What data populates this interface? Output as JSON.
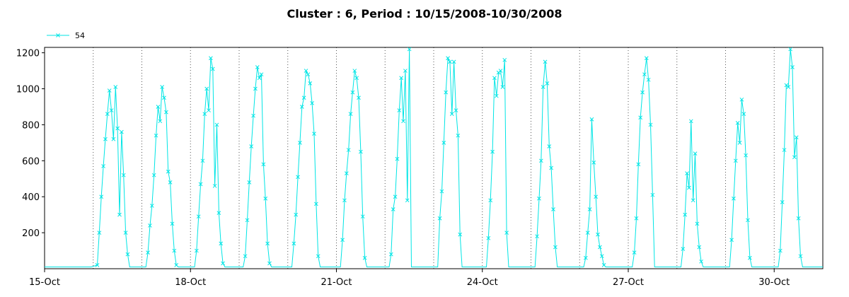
{
  "chart_data": {
    "type": "line",
    "title": "Cluster : 6, Period : 10/15/2008-10/30/2008",
    "xlabel": "",
    "ylabel": "",
    "x_ticks": [
      "15-Oct",
      "18-Oct",
      "21-Oct",
      "24-Oct",
      "27-Oct",
      "30-Oct"
    ],
    "y_ticks": [
      200,
      400,
      600,
      800,
      1000,
      1200
    ],
    "xlim": [
      "2008-10-15",
      "2008-10-30"
    ],
    "ylim": [
      0,
      1230
    ],
    "grid": "vertical dotted",
    "legend_position": "top-left",
    "colors": {
      "series": "#00e5e5",
      "axis": "#000000",
      "grid": "#555555"
    },
    "series": [
      {
        "name": "54",
        "points": [
          [
            "2008-10-15",
            10
          ],
          [
            "2008-10-15 12:00",
            10
          ],
          [
            "2008-10-15 23:00",
            10
          ],
          [
            "2008-10-16 02:00",
            20
          ],
          [
            "2008-10-16 03:00",
            200
          ],
          [
            "2008-10-16 04:00",
            400
          ],
          [
            "2008-10-16 05:00",
            570
          ],
          [
            "2008-10-16 06:00",
            720
          ],
          [
            "2008-10-16 07:00",
            860
          ],
          [
            "2008-10-16 08:00",
            990
          ],
          [
            "2008-10-16 09:00",
            880
          ],
          [
            "2008-10-16 10:00",
            720
          ],
          [
            "2008-10-16 11:00",
            1010
          ],
          [
            "2008-10-16 12:00",
            780
          ],
          [
            "2008-10-16 13:00",
            300
          ],
          [
            "2008-10-16 14:00",
            760
          ],
          [
            "2008-10-16 15:00",
            520
          ],
          [
            "2008-10-16 16:00",
            200
          ],
          [
            "2008-10-16 17:00",
            80
          ],
          [
            "2008-10-16 18:00",
            10
          ],
          [
            "2008-10-17 02:00",
            10
          ],
          [
            "2008-10-17 03:00",
            90
          ],
          [
            "2008-10-17 04:00",
            240
          ],
          [
            "2008-10-17 05:00",
            350
          ],
          [
            "2008-10-17 06:00",
            520
          ],
          [
            "2008-10-17 07:00",
            740
          ],
          [
            "2008-10-17 08:00",
            900
          ],
          [
            "2008-10-17 09:00",
            820
          ],
          [
            "2008-10-17 10:00",
            1010
          ],
          [
            "2008-10-17 11:00",
            950
          ],
          [
            "2008-10-17 12:00",
            870
          ],
          [
            "2008-10-17 13:00",
            540
          ],
          [
            "2008-10-17 14:00",
            480
          ],
          [
            "2008-10-17 15:00",
            250
          ],
          [
            "2008-10-17 16:00",
            100
          ],
          [
            "2008-10-17 17:00",
            20
          ],
          [
            "2008-10-17 18:00",
            10
          ],
          [
            "2008-10-18 02:00",
            10
          ],
          [
            "2008-10-18 03:00",
            100
          ],
          [
            "2008-10-18 04:00",
            290
          ],
          [
            "2008-10-18 05:00",
            470
          ],
          [
            "2008-10-18 06:00",
            600
          ],
          [
            "2008-10-18 07:00",
            860
          ],
          [
            "2008-10-18 08:00",
            1000
          ],
          [
            "2008-10-18 09:00",
            880
          ],
          [
            "2008-10-18 10:00",
            1170
          ],
          [
            "2008-10-18 11:00",
            1110
          ],
          [
            "2008-10-18 12:00",
            460
          ],
          [
            "2008-10-18 13:00",
            800
          ],
          [
            "2008-10-18 14:00",
            310
          ],
          [
            "2008-10-18 15:00",
            140
          ],
          [
            "2008-10-18 16:00",
            30
          ],
          [
            "2008-10-18 17:00",
            10
          ],
          [
            "2008-10-19 02:00",
            10
          ],
          [
            "2008-10-19 03:00",
            70
          ],
          [
            "2008-10-19 04:00",
            270
          ],
          [
            "2008-10-19 05:00",
            480
          ],
          [
            "2008-10-19 06:00",
            680
          ],
          [
            "2008-10-19 07:00",
            850
          ],
          [
            "2008-10-19 08:00",
            1000
          ],
          [
            "2008-10-19 09:00",
            1120
          ],
          [
            "2008-10-19 10:00",
            1060
          ],
          [
            "2008-10-19 11:00",
            1080
          ],
          [
            "2008-10-19 12:00",
            580
          ],
          [
            "2008-10-19 13:00",
            390
          ],
          [
            "2008-10-19 14:00",
            140
          ],
          [
            "2008-10-19 15:00",
            30
          ],
          [
            "2008-10-19 16:00",
            10
          ],
          [
            "2008-10-20 02:00",
            10
          ],
          [
            "2008-10-20 03:00",
            140
          ],
          [
            "2008-10-20 04:00",
            300
          ],
          [
            "2008-10-20 05:00",
            510
          ],
          [
            "2008-10-20 06:00",
            700
          ],
          [
            "2008-10-20 07:00",
            900
          ],
          [
            "2008-10-20 08:00",
            950
          ],
          [
            "2008-10-20 09:00",
            1100
          ],
          [
            "2008-10-20 10:00",
            1080
          ],
          [
            "2008-10-20 11:00",
            1030
          ],
          [
            "2008-10-20 12:00",
            920
          ],
          [
            "2008-10-20 13:00",
            750
          ],
          [
            "2008-10-20 14:00",
            360
          ],
          [
            "2008-10-20 15:00",
            70
          ],
          [
            "2008-10-20 16:00",
            10
          ],
          [
            "2008-10-21 02:00",
            10
          ],
          [
            "2008-10-21 03:00",
            160
          ],
          [
            "2008-10-21 04:00",
            380
          ],
          [
            "2008-10-21 05:00",
            530
          ],
          [
            "2008-10-21 06:00",
            660
          ],
          [
            "2008-10-21 07:00",
            860
          ],
          [
            "2008-10-21 08:00",
            980
          ],
          [
            "2008-10-21 09:00",
            1100
          ],
          [
            "2008-10-21 10:00",
            1060
          ],
          [
            "2008-10-21 11:00",
            950
          ],
          [
            "2008-10-21 12:00",
            650
          ],
          [
            "2008-10-21 13:00",
            290
          ],
          [
            "2008-10-21 14:00",
            60
          ],
          [
            "2008-10-21 15:00",
            10
          ],
          [
            "2008-10-22 02:00",
            10
          ],
          [
            "2008-10-22 03:00",
            80
          ],
          [
            "2008-10-22 04:00",
            330
          ],
          [
            "2008-10-22 05:00",
            400
          ],
          [
            "2008-10-22 06:00",
            610
          ],
          [
            "2008-10-22 07:00",
            880
          ],
          [
            "2008-10-22 08:00",
            1060
          ],
          [
            "2008-10-22 09:00",
            820
          ],
          [
            "2008-10-22 10:00",
            1100
          ],
          [
            "2008-10-22 11:00",
            380
          ],
          [
            "2008-10-22 12:00",
            1220
          ],
          [
            "2008-10-22 13:00",
            10
          ],
          [
            "2008-10-23 02:00",
            10
          ],
          [
            "2008-10-23 03:00",
            280
          ],
          [
            "2008-10-23 04:00",
            430
          ],
          [
            "2008-10-23 05:00",
            700
          ],
          [
            "2008-10-23 06:00",
            980
          ],
          [
            "2008-10-23 07:00",
            1170
          ],
          [
            "2008-10-23 08:00",
            1150
          ],
          [
            "2008-10-23 09:00",
            860
          ],
          [
            "2008-10-23 10:00",
            1150
          ],
          [
            "2008-10-23 11:00",
            880
          ],
          [
            "2008-10-23 12:00",
            740
          ],
          [
            "2008-10-23 13:00",
            190
          ],
          [
            "2008-10-23 14:00",
            10
          ],
          [
            "2008-10-24 02:00",
            10
          ],
          [
            "2008-10-24 03:00",
            170
          ],
          [
            "2008-10-24 04:00",
            380
          ],
          [
            "2008-10-24 05:00",
            650
          ],
          [
            "2008-10-24 06:00",
            1060
          ],
          [
            "2008-10-24 07:00",
            960
          ],
          [
            "2008-10-24 08:00",
            1090
          ],
          [
            "2008-10-24 09:00",
            1100
          ],
          [
            "2008-10-24 10:00",
            1010
          ],
          [
            "2008-10-24 11:00",
            1160
          ],
          [
            "2008-10-24 12:00",
            200
          ],
          [
            "2008-10-24 13:00",
            10
          ],
          [
            "2008-10-25 02:00",
            10
          ],
          [
            "2008-10-25 03:00",
            180
          ],
          [
            "2008-10-25 04:00",
            390
          ],
          [
            "2008-10-25 05:00",
            600
          ],
          [
            "2008-10-25 06:00",
            1010
          ],
          [
            "2008-10-25 07:00",
            1150
          ],
          [
            "2008-10-25 08:00",
            1030
          ],
          [
            "2008-10-25 09:00",
            680
          ],
          [
            "2008-10-25 10:00",
            560
          ],
          [
            "2008-10-25 11:00",
            330
          ],
          [
            "2008-10-25 12:00",
            120
          ],
          [
            "2008-10-25 13:00",
            10
          ],
          [
            "2008-10-26 02:00",
            10
          ],
          [
            "2008-10-26 03:00",
            60
          ],
          [
            "2008-10-26 04:00",
            200
          ],
          [
            "2008-10-26 05:00",
            330
          ],
          [
            "2008-10-26 06:00",
            830
          ],
          [
            "2008-10-26 07:00",
            590
          ],
          [
            "2008-10-26 08:00",
            400
          ],
          [
            "2008-10-26 09:00",
            190
          ],
          [
            "2008-10-26 10:00",
            120
          ],
          [
            "2008-10-26 11:00",
            70
          ],
          [
            "2008-10-26 12:00",
            20
          ],
          [
            "2008-10-26 13:00",
            10
          ],
          [
            "2008-10-27 02:00",
            10
          ],
          [
            "2008-10-27 03:00",
            90
          ],
          [
            "2008-10-27 04:00",
            280
          ],
          [
            "2008-10-27 05:00",
            580
          ],
          [
            "2008-10-27 06:00",
            840
          ],
          [
            "2008-10-27 07:00",
            980
          ],
          [
            "2008-10-27 08:00",
            1080
          ],
          [
            "2008-10-27 09:00",
            1170
          ],
          [
            "2008-10-27 10:00",
            1050
          ],
          [
            "2008-10-27 11:00",
            800
          ],
          [
            "2008-10-27 12:00",
            410
          ],
          [
            "2008-10-27 13:00",
            10
          ],
          [
            "2008-10-28 02:00",
            10
          ],
          [
            "2008-10-28 03:00",
            110
          ],
          [
            "2008-10-28 04:00",
            300
          ],
          [
            "2008-10-28 05:00",
            530
          ],
          [
            "2008-10-28 06:00",
            450
          ],
          [
            "2008-10-28 07:00",
            820
          ],
          [
            "2008-10-28 08:00",
            380
          ],
          [
            "2008-10-28 09:00",
            640
          ],
          [
            "2008-10-28 10:00",
            250
          ],
          [
            "2008-10-28 11:00",
            120
          ],
          [
            "2008-10-28 12:00",
            40
          ],
          [
            "2008-10-28 13:00",
            10
          ],
          [
            "2008-10-29 02:00",
            10
          ],
          [
            "2008-10-29 03:00",
            160
          ],
          [
            "2008-10-29 04:00",
            390
          ],
          [
            "2008-10-29 05:00",
            600
          ],
          [
            "2008-10-29 06:00",
            810
          ],
          [
            "2008-10-29 07:00",
            700
          ],
          [
            "2008-10-29 08:00",
            940
          ],
          [
            "2008-10-29 09:00",
            860
          ],
          [
            "2008-10-29 10:00",
            630
          ],
          [
            "2008-10-29 11:00",
            270
          ],
          [
            "2008-10-29 12:00",
            60
          ],
          [
            "2008-10-29 13:00",
            10
          ],
          [
            "2008-10-30 02:00",
            10
          ],
          [
            "2008-10-30 03:00",
            100
          ],
          [
            "2008-10-30 04:00",
            370
          ],
          [
            "2008-10-30 05:00",
            660
          ],
          [
            "2008-10-30 06:00",
            1020
          ],
          [
            "2008-10-30 07:00",
            1010
          ],
          [
            "2008-10-30 08:00",
            1220
          ],
          [
            "2008-10-30 09:00",
            1120
          ],
          [
            "2008-10-30 10:00",
            620
          ],
          [
            "2008-10-30 11:00",
            730
          ],
          [
            "2008-10-30 12:00",
            280
          ],
          [
            "2008-10-30 13:00",
            70
          ],
          [
            "2008-10-30 14:00",
            10
          ],
          [
            "2008-10-31 00:00",
            10
          ]
        ]
      }
    ]
  }
}
